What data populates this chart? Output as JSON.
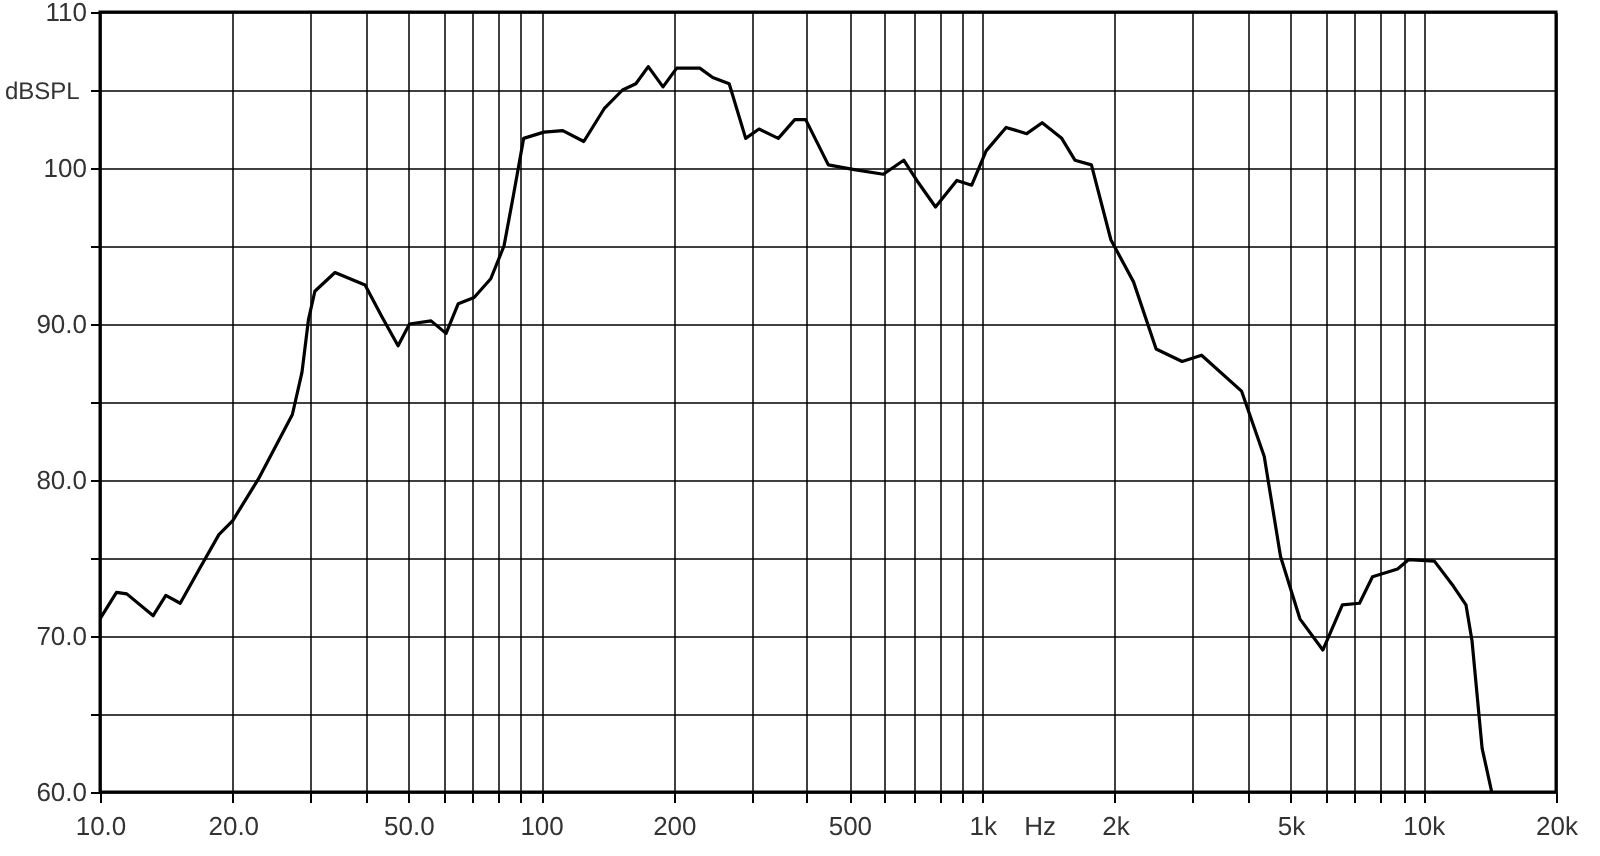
{
  "chart_data": {
    "type": "line",
    "xlabel": "Hz",
    "ylabel": "dBSPL",
    "log": "x",
    "grid": true,
    "marker": "none",
    "line_style": "solid",
    "xlim": [
      10,
      20000
    ],
    "ylim": [
      60,
      110
    ],
    "xticks": [
      {
        "value": 10,
        "label": "10.0"
      },
      {
        "value": 20,
        "label": "20.0"
      },
      {
        "value": 30,
        "label": null
      },
      {
        "value": 40,
        "label": null
      },
      {
        "value": 50,
        "label": "50.0"
      },
      {
        "value": 60,
        "label": null
      },
      {
        "value": 70,
        "label": null
      },
      {
        "value": 80,
        "label": null
      },
      {
        "value": 90,
        "label": null
      },
      100,
      200,
      {
        "value": 300,
        "label": null
      },
      {
        "value": 400,
        "label": null
      },
      500,
      {
        "value": 600,
        "label": null
      },
      {
        "value": 700,
        "label": null
      },
      {
        "value": 800,
        "label": null
      },
      {
        "value": 900,
        "label": null
      },
      {
        "value": 1000,
        "label": "1k"
      },
      {
        "value": 2000,
        "label": "2k"
      },
      {
        "value": 3000,
        "label": null
      },
      {
        "value": 4000,
        "label": null
      },
      {
        "value": 5000,
        "label": "5k"
      },
      {
        "value": 6000,
        "label": null
      },
      {
        "value": 7000,
        "label": null
      },
      {
        "value": 8000,
        "label": null
      },
      {
        "value": 9000,
        "label": null
      },
      {
        "value": 10000,
        "label": "10k"
      },
      {
        "value": 20000,
        "label": "20k"
      }
    ],
    "yticks": [
      {
        "value": 60,
        "label": "60.0"
      },
      {
        "value": 65,
        "label": null
      },
      {
        "value": 70,
        "label": "70.0"
      },
      {
        "value": 75,
        "label": null
      },
      {
        "value": 80,
        "label": "80.0"
      },
      {
        "value": 85,
        "label": null
      },
      {
        "value": 90,
        "label": "90.0"
      },
      {
        "value": 95,
        "label": null
      },
      100,
      {
        "value": 105,
        "label": null
      },
      110
    ],
    "series": [
      {
        "color": "#000000",
        "x": [
          10,
          10.9,
          11.5,
          13.2,
          14.1,
          15.2,
          16.8,
          18.6,
          20,
          22.9,
          27.3,
          28.7,
          29.7,
          30.7,
          34.1,
          39.9,
          43.5,
          47.4,
          50.3,
          56.3,
          60.9,
          64.9,
          70.5,
          76.9,
          82.4,
          86.5,
          91.3,
          101.5,
          112,
          125,
          139,
          153,
          164,
          175,
          189,
          203,
          229,
          245,
          267,
          291,
          312,
          345,
          376,
          398,
          448,
          513,
          597,
          664,
          711,
          784,
          876,
          947,
          1021,
          1133,
          1262,
          1368,
          1515,
          1623,
          1769,
          1958,
          2204,
          2480,
          2840,
          3144,
          3873,
          4361,
          4748,
          5253,
          5921,
          6557,
          7170,
          7674,
          8747,
          9274,
          10600,
          11700,
          12500,
          12900,
          13600,
          14300
        ],
        "values": [
          71.1,
          72.8,
          72.7,
          71.3,
          72.6,
          72.1,
          74.3,
          76.5,
          77.4,
          80.1,
          84.2,
          86.9,
          90.3,
          92.1,
          93.3,
          92.5,
          90.5,
          88.6,
          90.0,
          90.2,
          89.4,
          91.3,
          91.7,
          92.9,
          95.0,
          98.2,
          101.9,
          102.3,
          102.4,
          101.7,
          103.8,
          105.0,
          105.4,
          106.5,
          105.2,
          106.4,
          106.4,
          105.8,
          105.4,
          101.9,
          102.5,
          101.9,
          103.1,
          103.1,
          100.2,
          99.9,
          99.6,
          100.5,
          99.2,
          97.5,
          99.2,
          98.9,
          101.1,
          102.6,
          102.2,
          102.9,
          101.9,
          100.5,
          100.2,
          95.4,
          92.7,
          88.4,
          87.6,
          88.0,
          85.7,
          81.5,
          75.1,
          71.1,
          69.1,
          72.0,
          72.1,
          73.8,
          74.3,
          74.9,
          74.8,
          73.2,
          72.0,
          69.7,
          62.8,
          60
        ]
      }
    ]
  }
}
